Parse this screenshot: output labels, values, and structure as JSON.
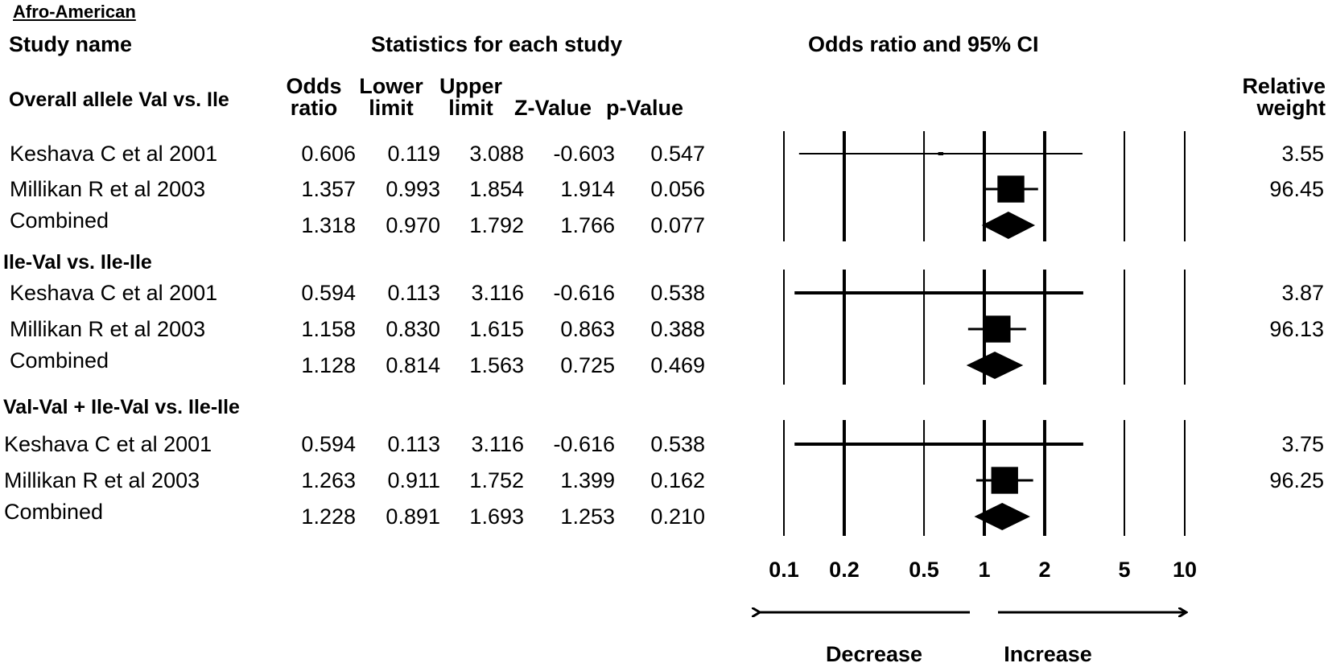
{
  "region": "Afro-American",
  "headers": {
    "study_name": "Study name",
    "statistics": "Statistics for each study",
    "plot_title": "Odds ratio and 95% CI",
    "odds_ratio": [
      "Odds",
      "ratio"
    ],
    "lower": [
      "Lower",
      "limit"
    ],
    "upper": [
      "Upper",
      "limit"
    ],
    "z": "Z-Value",
    "p": "p-Value",
    "weight": [
      "Relative",
      "weight"
    ]
  },
  "axis_labels": {
    "decrease": "Decrease",
    "increase": "Increase"
  },
  "colors": {
    "ink": "#000000",
    "background": "#ffffff"
  },
  "chart_data": {
    "type": "forest",
    "title": "Odds ratio and 95% CI",
    "scale": "log",
    "xlim": [
      0.1,
      10
    ],
    "ticks": [
      0.1,
      0.2,
      0.5,
      1,
      2,
      5,
      10
    ],
    "tick_labels": [
      "0.1",
      "0.2",
      "0.5",
      "1",
      "2",
      "5",
      "10"
    ],
    "groups": [
      {
        "title": "Overall allele Val vs. Ile",
        "rows": [
          {
            "study": "Keshava C et al 2001",
            "or": "0.606",
            "lower": "0.119",
            "upper": "3.088",
            "z": "-0.603",
            "p": "0.547",
            "weight": "3.55",
            "kind": "study"
          },
          {
            "study": "Millikan R et al 2003",
            "or": "1.357",
            "lower": "0.993",
            "upper": "1.854",
            "z": "1.914",
            "p": "0.056",
            "weight": "96.45",
            "kind": "study"
          },
          {
            "study": "Combined",
            "or": "1.318",
            "lower": "0.970",
            "upper": "1.792",
            "z": "1.766",
            "p": "0.077",
            "weight": "",
            "kind": "combined"
          }
        ]
      },
      {
        "title": "Ile-Val vs. Ile-Ile",
        "rows": [
          {
            "study": "Keshava C et al 2001",
            "or": "0.594",
            "lower": "0.113",
            "upper": "3.116",
            "z": "-0.616",
            "p": "0.538",
            "weight": "3.87",
            "kind": "study"
          },
          {
            "study": "Millikan R et al 2003",
            "or": "1.158",
            "lower": "0.830",
            "upper": "1.615",
            "z": "0.863",
            "p": "0.388",
            "weight": "96.13",
            "kind": "study"
          },
          {
            "study": "Combined",
            "or": "1.128",
            "lower": "0.814",
            "upper": "1.563",
            "z": "0.725",
            "p": "0.469",
            "weight": "",
            "kind": "combined"
          }
        ]
      },
      {
        "title": "Val-Val + Ile-Val vs. Ile-Ile",
        "rows": [
          {
            "study": "Keshava C et al 2001",
            "or": "0.594",
            "lower": "0.113",
            "upper": "3.116",
            "z": "-0.616",
            "p": "0.538",
            "weight": "3.75",
            "kind": "study"
          },
          {
            "study": "Millikan R et al 2003",
            "or": "1.263",
            "lower": "0.911",
            "upper": "1.752",
            "z": "1.399",
            "p": "0.162",
            "weight": "96.25",
            "kind": "study"
          },
          {
            "study": "Combined",
            "or": "1.228",
            "lower": "0.891",
            "upper": "1.693",
            "z": "1.253",
            "p": "0.210",
            "weight": "",
            "kind": "combined"
          }
        ]
      }
    ]
  }
}
